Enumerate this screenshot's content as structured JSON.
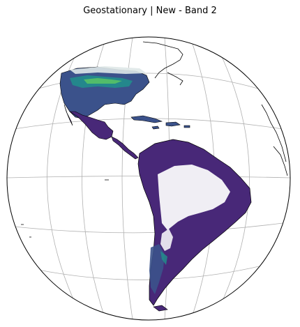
{
  "title": "Geostationary | New - Band 2",
  "map": {
    "projection": "geostationary",
    "graticule": true,
    "colors": {
      "background": "#ffffff",
      "ocean": "#ffffff",
      "coastline": "#000000",
      "grid": "#b0b0b0",
      "data_low": "#440154",
      "data_mid_low": "#3b528b",
      "data_mid": "#21918c",
      "data_mid_high": "#5ec962",
      "data_high": "#fde725",
      "no_data": "#ffffff"
    },
    "colormap": "viridis",
    "regions": [
      "north-america",
      "central-america",
      "caribbean",
      "south-america"
    ]
  }
}
